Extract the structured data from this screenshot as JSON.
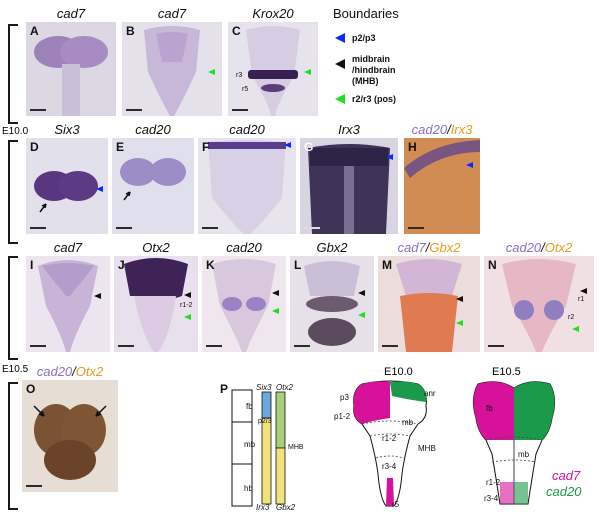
{
  "titles": {
    "a": "cad7",
    "b": "cad7",
    "c": "Krox20",
    "d": "Six3",
    "e": "cad20",
    "f": "cad20",
    "g": "Irx3",
    "h_gene1": "cad20",
    "h_gene2": "Irx3",
    "i": "cad7",
    "j": "Otx2",
    "k": "cad20",
    "l": "Gbx2",
    "m_gene1": "cad7",
    "m_gene2": "Gbx2",
    "n_gene1": "cad20",
    "n_gene2": "Otx2",
    "o_gene1": "cad20",
    "o_gene2": "Otx2"
  },
  "slash": "/",
  "panel_letters": [
    "A",
    "B",
    "C",
    "D",
    "E",
    "F",
    "G",
    "H",
    "I",
    "J",
    "K",
    "L",
    "M",
    "N",
    "O",
    "P"
  ],
  "stages": {
    "e100": "E10.0",
    "e105": "E10.5"
  },
  "legend": {
    "title": "Boundaries",
    "blue": "p2/p3",
    "black_1": "midbrain",
    "black_2": "/hindbrain",
    "black_3": "(MHB)",
    "green": "r2/r3 (pos)"
  },
  "panel_labels": {
    "c_r3": "r3",
    "c_r5": "r5",
    "j_r12": "r1-2",
    "n_r1": "r1",
    "n_r2": "r2"
  },
  "diagram_p": {
    "regions": [
      "fb",
      "p2/3",
      "mb",
      "hb"
    ],
    "genes_top": [
      "Six3",
      "Otx2"
    ],
    "genes_bottom": [
      "Irx3",
      "Gbx2"
    ],
    "mhb": "MHB"
  },
  "diagram_e100": {
    "stage": "E10.0",
    "labels": [
      "p3",
      "anr",
      "p1-2",
      "mb",
      "r1-2",
      "MHB",
      "r3-4",
      "r5"
    ]
  },
  "diagram_e105": {
    "stage": "E10.5",
    "labels": [
      "fb",
      "mb",
      "r1-2",
      "r3-4"
    ]
  },
  "diagram_legend": {
    "magenta": "cad7",
    "green": "cad20"
  },
  "colors": {
    "blue_arrow": "#0a2aff",
    "black_arrow": "#111111",
    "green_arrow": "#1ee01e",
    "magenta": "#d6119a",
    "green": "#1a9a4a",
    "stain_purple": "#5c3a8a",
    "cad_label_color": "#8a6fc2",
    "orange_label_color": "#e89a19"
  }
}
